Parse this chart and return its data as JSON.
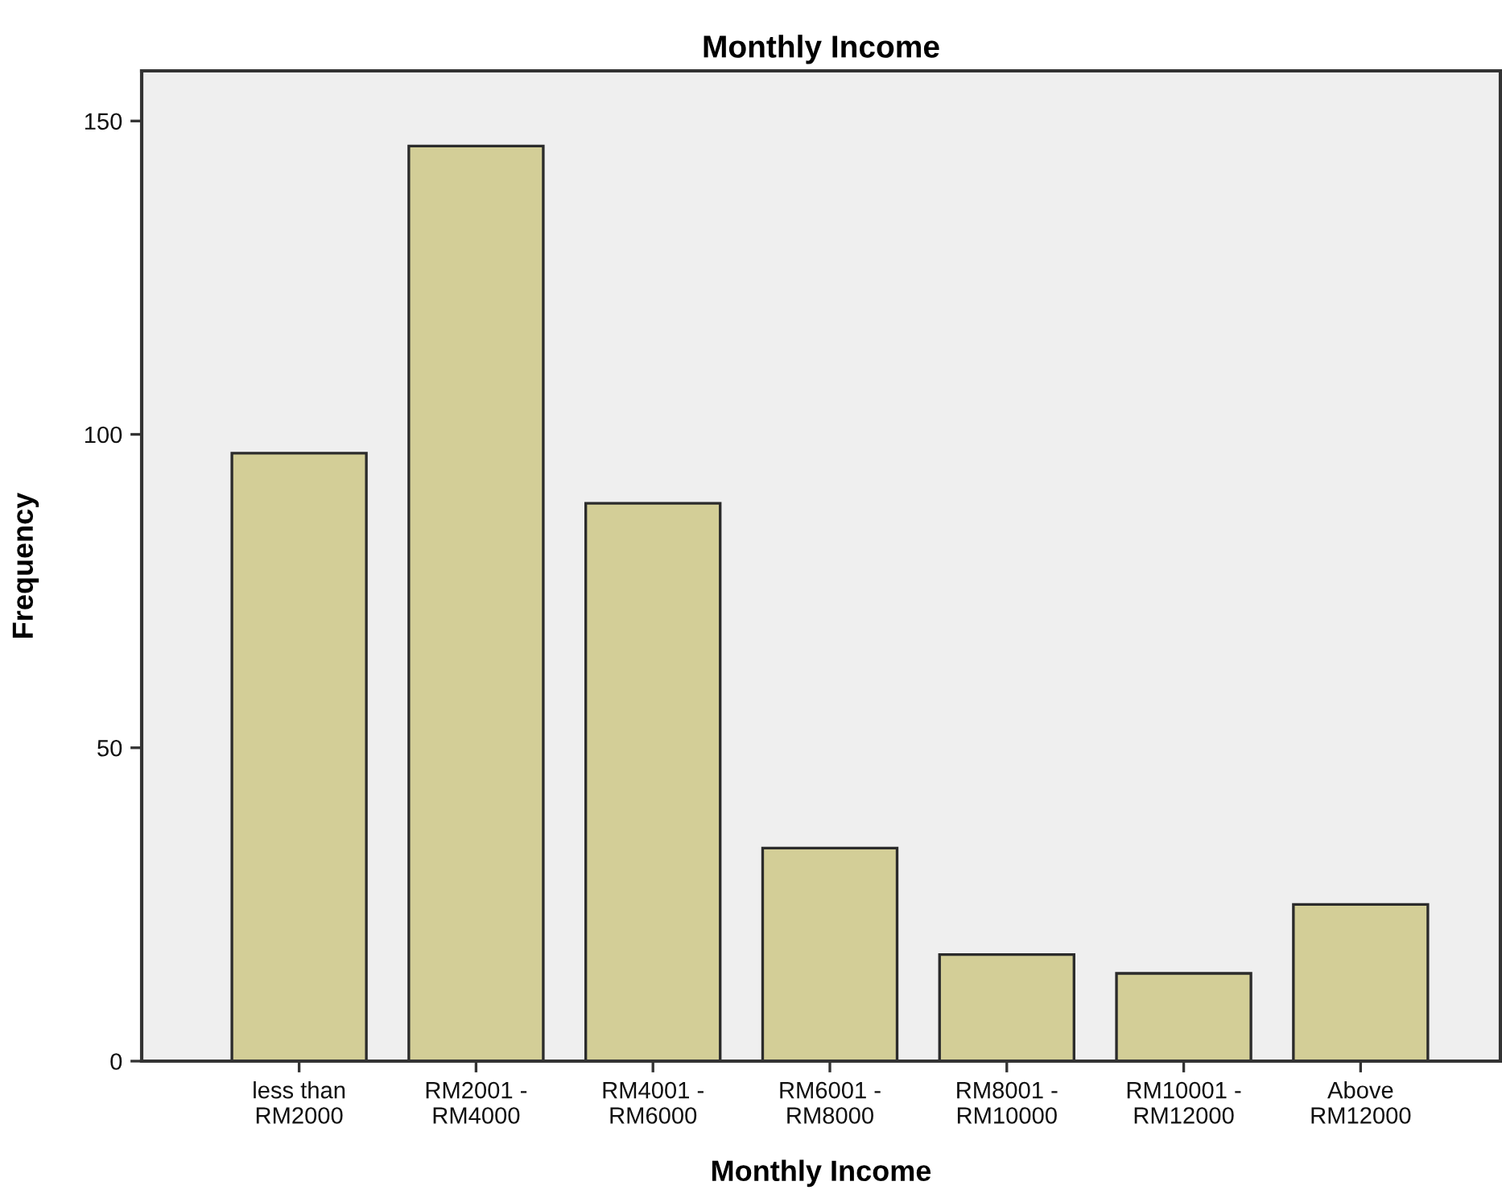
{
  "chart_data": {
    "type": "bar",
    "title": "Monthly Income",
    "xlabel": "Monthly Income",
    "ylabel": "Frequency",
    "categories": [
      "less than\nRM2000",
      "RM2001 -\nRM4000",
      "RM4001 -\nRM6000",
      "RM6001 -\nRM8000",
      "RM8001 -\nRM10000",
      "RM10001 -\nRM12000",
      "Above\nRM12000"
    ],
    "values": [
      97,
      146,
      89,
      34,
      17,
      14,
      25
    ],
    "color": "#d3ce97",
    "ylim": [
      0,
      158
    ],
    "yticks": [
      0,
      50,
      100,
      150
    ],
    "grid": false
  }
}
